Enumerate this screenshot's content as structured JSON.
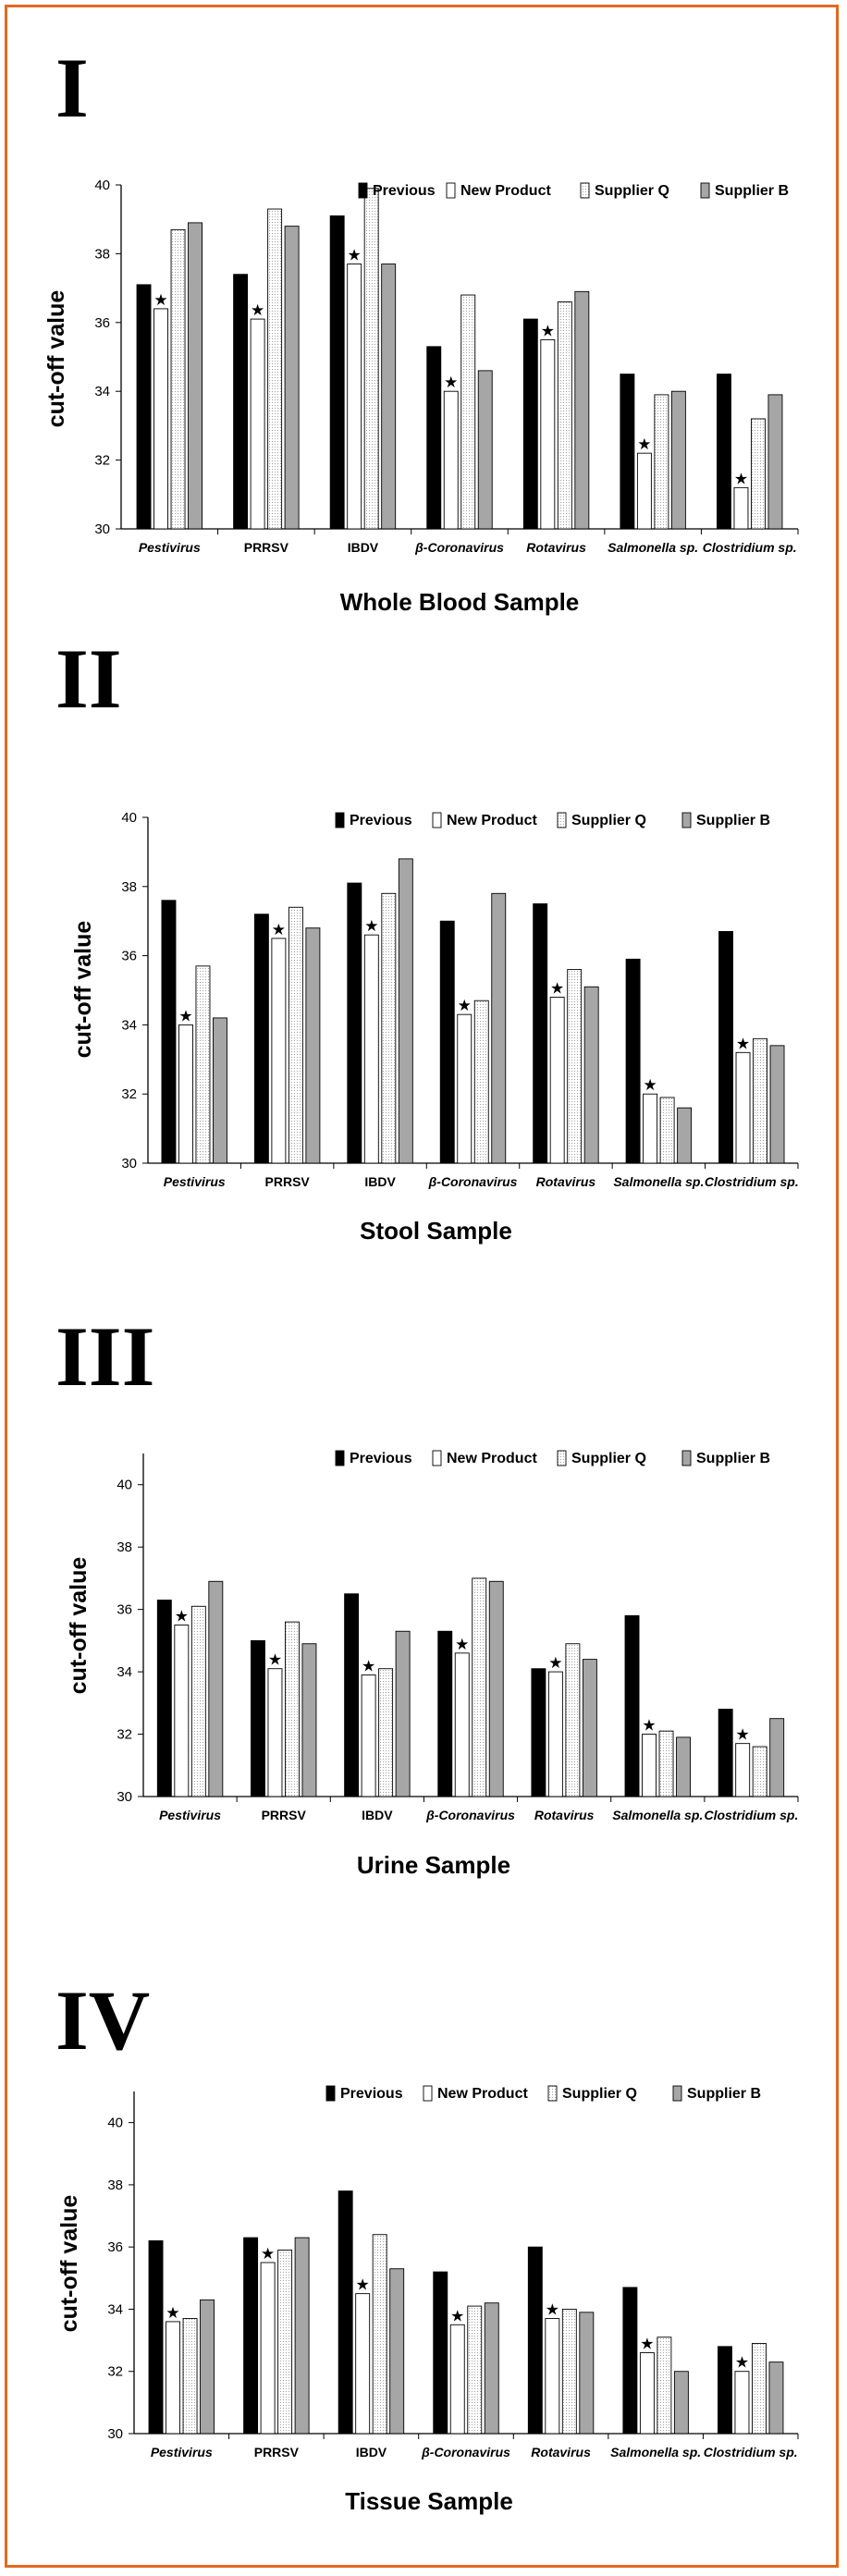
{
  "chart_data": [
    {
      "type": "bar",
      "panel": "I",
      "title": "Whole Blood Sample",
      "ylabel": "cut-off value",
      "ylim": [
        30,
        40
      ],
      "yticks": [
        30,
        32,
        34,
        36,
        38,
        40
      ],
      "legend_placement": "top-right",
      "categories": [
        "Pestivirus",
        "PRRSV",
        "IBDV",
        "β-Coronavirus",
        "Rotavirus",
        "Salmonella sp.",
        "Clostridium sp."
      ],
      "categories_italic": [
        true,
        false,
        false,
        true,
        true,
        true,
        true
      ],
      "series": [
        {
          "name": "Previous",
          "values": [
            37.1,
            37.4,
            39.1,
            35.3,
            36.1,
            34.5,
            34.5
          ]
        },
        {
          "name": "New Product",
          "values": [
            36.4,
            36.1,
            37.7,
            34.0,
            35.5,
            32.2,
            31.2
          ]
        },
        {
          "name": "Supplier Q",
          "values": [
            38.7,
            39.3,
            39.9,
            36.8,
            36.6,
            33.9,
            33.2
          ]
        },
        {
          "name": "Supplier B",
          "values": [
            38.9,
            38.8,
            37.7,
            34.6,
            36.9,
            34.0,
            33.9
          ]
        }
      ],
      "marked_series": "New Product",
      "marker": "★"
    },
    {
      "type": "bar",
      "panel": "II",
      "title": "Stool Sample",
      "ylabel": "cut-off value",
      "ylim": [
        30,
        40
      ],
      "yticks": [
        30,
        32,
        34,
        36,
        38,
        40
      ],
      "legend_placement": "top-right",
      "categories": [
        "Pestivirus",
        "PRRSV",
        "IBDV",
        "β-Coronavirus",
        "Rotavirus",
        "Salmonella sp.",
        "Clostridium sp."
      ],
      "categories_italic": [
        true,
        false,
        false,
        true,
        true,
        true,
        true
      ],
      "series": [
        {
          "name": "Previous",
          "values": [
            37.6,
            37.2,
            38.1,
            37.0,
            37.5,
            35.9,
            36.7
          ]
        },
        {
          "name": "New Product",
          "values": [
            34.0,
            36.5,
            36.6,
            34.3,
            34.8,
            32.0,
            33.2
          ]
        },
        {
          "name": "Supplier Q",
          "values": [
            35.7,
            37.4,
            37.8,
            34.7,
            35.6,
            31.9,
            33.6
          ]
        },
        {
          "name": "Supplier B",
          "values": [
            34.2,
            36.8,
            38.8,
            37.8,
            35.1,
            31.6,
            33.4
          ]
        }
      ],
      "marked_series": "New Product",
      "marker": "★"
    },
    {
      "type": "bar",
      "panel": "III",
      "title": "Urine Sample",
      "ylabel": "cut-off value",
      "ylim": [
        30,
        41
      ],
      "yticks": [
        30,
        32,
        34,
        36,
        38,
        40
      ],
      "legend_placement": "top-right",
      "categories": [
        "Pestivirus",
        "PRRSV",
        "IBDV",
        "β-Coronavirus",
        "Rotavirus",
        "Salmonella sp.",
        "Clostridium sp."
      ],
      "categories_italic": [
        true,
        false,
        false,
        true,
        true,
        true,
        true
      ],
      "series": [
        {
          "name": "Previous",
          "values": [
            36.3,
            35.0,
            36.5,
            35.3,
            34.1,
            35.8,
            32.8
          ]
        },
        {
          "name": "New Product",
          "values": [
            35.5,
            34.1,
            33.9,
            34.6,
            34.0,
            32.0,
            31.7
          ]
        },
        {
          "name": "Supplier Q",
          "values": [
            36.1,
            35.6,
            34.1,
            37.0,
            34.9,
            32.1,
            31.6
          ]
        },
        {
          "name": "Supplier B",
          "values": [
            36.9,
            34.9,
            35.3,
            36.9,
            34.4,
            31.9,
            32.5
          ]
        }
      ],
      "marked_series": "New Product",
      "marker": "★"
    },
    {
      "type": "bar",
      "panel": "IV",
      "title": "Tissue Sample",
      "ylabel": "cut-off value",
      "ylim": [
        30,
        41
      ],
      "yticks": [
        30,
        32,
        34,
        36,
        38,
        40
      ],
      "legend_placement": "top-right",
      "categories": [
        "Pestivirus",
        "PRRSV",
        "IBDV",
        "β-Coronavirus",
        "Rotavirus",
        "Salmonella sp.",
        "Clostridium sp."
      ],
      "categories_italic": [
        true,
        false,
        false,
        true,
        true,
        true,
        true
      ],
      "series": [
        {
          "name": "Previous",
          "values": [
            36.2,
            36.3,
            37.8,
            35.2,
            36.0,
            34.7,
            32.8
          ]
        },
        {
          "name": "New Product",
          "values": [
            33.6,
            35.5,
            34.5,
            33.5,
            33.7,
            32.6,
            32.0
          ]
        },
        {
          "name": "Supplier Q",
          "values": [
            33.7,
            35.9,
            36.4,
            34.1,
            34.0,
            33.1,
            32.9
          ]
        },
        {
          "name": "Supplier B",
          "values": [
            34.3,
            36.3,
            35.3,
            34.2,
            33.9,
            32.0,
            32.3
          ]
        }
      ],
      "marked_series": "New Product",
      "marker": "★"
    }
  ],
  "colors": {
    "border": "#e2691f",
    "previous": "#000000",
    "new_product": "#ffffff",
    "supplier_q": "#f2f2f2",
    "supplier_b": "#a6a6a6"
  }
}
